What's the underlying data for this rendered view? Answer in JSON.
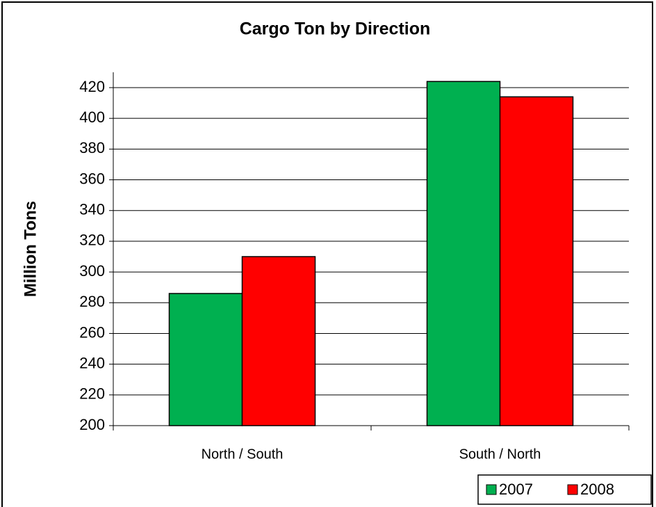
{
  "chart_data": {
    "type": "bar",
    "title": "Cargo Ton by Direction",
    "ylabel": "Million Tons",
    "categories": [
      "North / South",
      "South / North"
    ],
    "series": [
      {
        "name": "2007",
        "color": "#00b050",
        "values": [
          286,
          424
        ]
      },
      {
        "name": "2008",
        "color": "#ff0000",
        "values": [
          310,
          414
        ]
      }
    ],
    "ylim": [
      200,
      430
    ],
    "yticks": [
      200,
      220,
      240,
      260,
      280,
      300,
      320,
      340,
      360,
      380,
      400,
      420
    ],
    "grid": true,
    "legend": "bottom-right"
  }
}
